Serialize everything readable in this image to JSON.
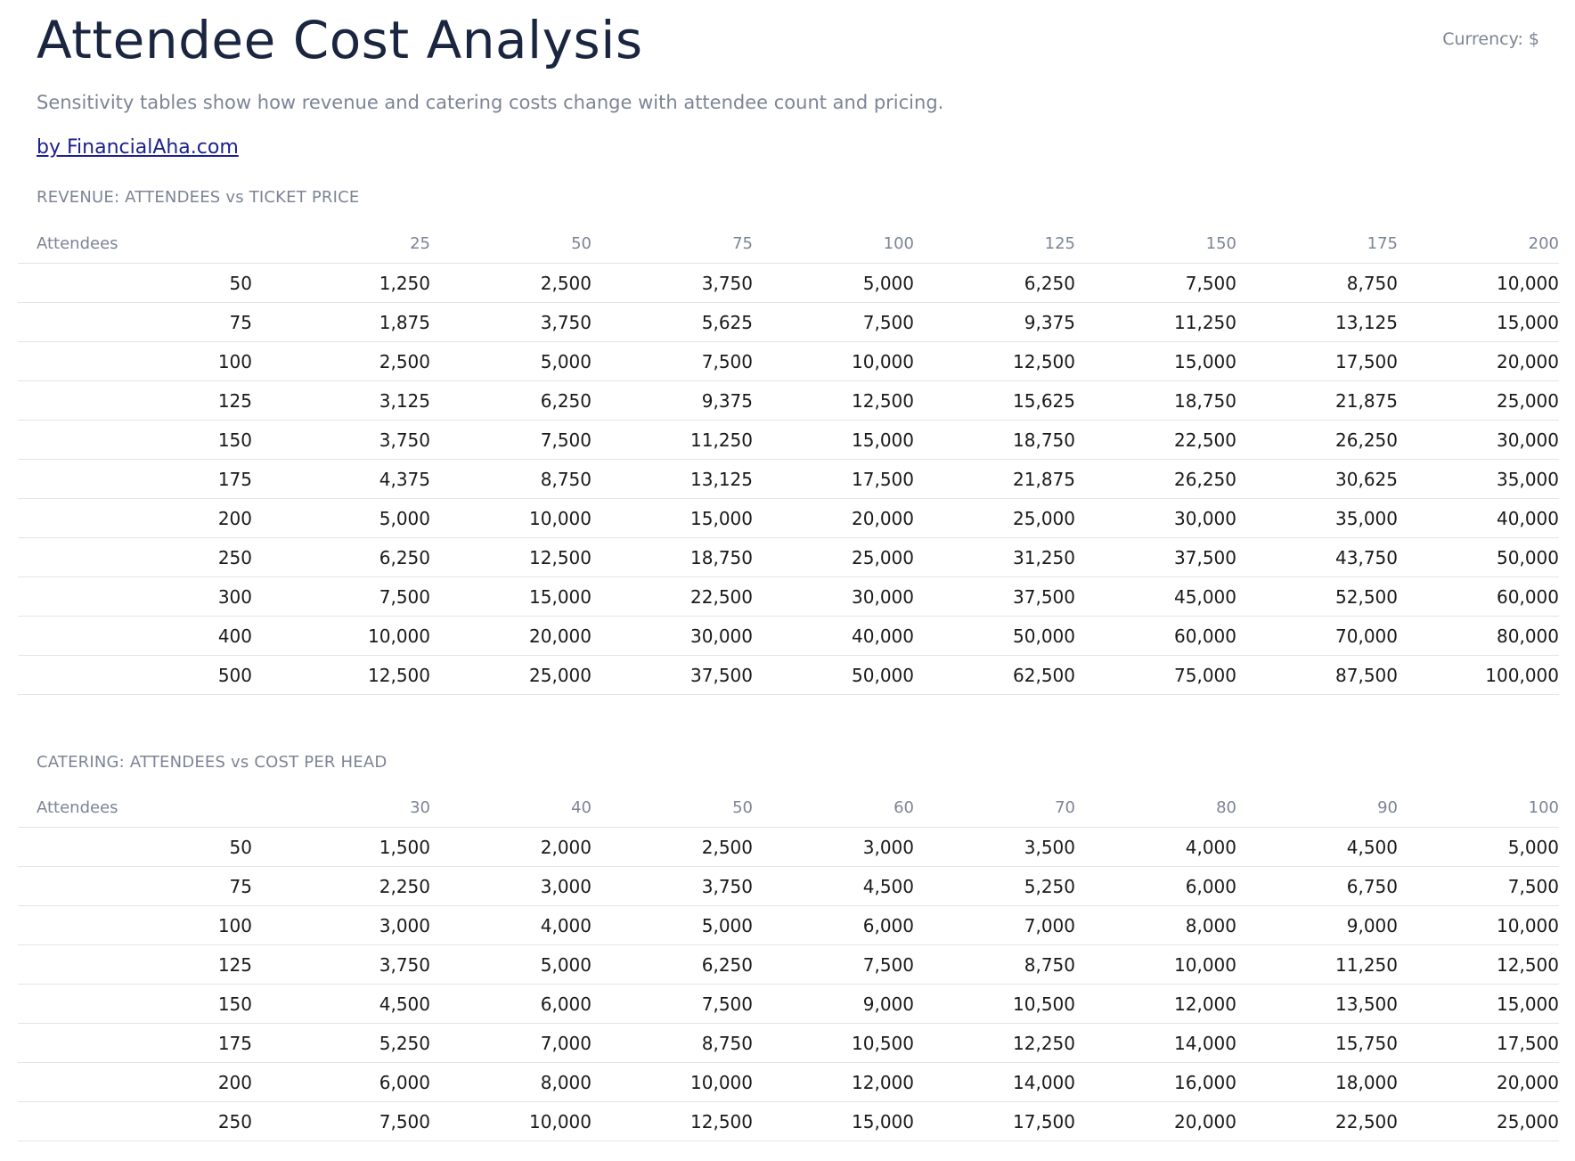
{
  "header": {
    "title": "Attendee Cost Analysis",
    "currency": "Currency: $",
    "subtitle": "Sensitivity tables show how revenue and catering costs change with attendee count and pricing.",
    "byline": "by FinancialAha.com"
  },
  "revenue": {
    "label": "REVENUE: ATTENDEES vs TICKET PRICE",
    "row_header": "Attendees",
    "columns": [
      "25",
      "50",
      "75",
      "100",
      "125",
      "150",
      "175",
      "200"
    ],
    "rows": [
      {
        "attendees": "50",
        "values": [
          "1,250",
          "2,500",
          "3,750",
          "5,000",
          "6,250",
          "7,500",
          "8,750",
          "10,000"
        ]
      },
      {
        "attendees": "75",
        "values": [
          "1,875",
          "3,750",
          "5,625",
          "7,500",
          "9,375",
          "11,250",
          "13,125",
          "15,000"
        ]
      },
      {
        "attendees": "100",
        "values": [
          "2,500",
          "5,000",
          "7,500",
          "10,000",
          "12,500",
          "15,000",
          "17,500",
          "20,000"
        ]
      },
      {
        "attendees": "125",
        "values": [
          "3,125",
          "6,250",
          "9,375",
          "12,500",
          "15,625",
          "18,750",
          "21,875",
          "25,000"
        ]
      },
      {
        "attendees": "150",
        "values": [
          "3,750",
          "7,500",
          "11,250",
          "15,000",
          "18,750",
          "22,500",
          "26,250",
          "30,000"
        ]
      },
      {
        "attendees": "175",
        "values": [
          "4,375",
          "8,750",
          "13,125",
          "17,500",
          "21,875",
          "26,250",
          "30,625",
          "35,000"
        ]
      },
      {
        "attendees": "200",
        "values": [
          "5,000",
          "10,000",
          "15,000",
          "20,000",
          "25,000",
          "30,000",
          "35,000",
          "40,000"
        ]
      },
      {
        "attendees": "250",
        "values": [
          "6,250",
          "12,500",
          "18,750",
          "25,000",
          "31,250",
          "37,500",
          "43,750",
          "50,000"
        ]
      },
      {
        "attendees": "300",
        "values": [
          "7,500",
          "15,000",
          "22,500",
          "30,000",
          "37,500",
          "45,000",
          "52,500",
          "60,000"
        ]
      },
      {
        "attendees": "400",
        "values": [
          "10,000",
          "20,000",
          "30,000",
          "40,000",
          "50,000",
          "60,000",
          "70,000",
          "80,000"
        ]
      },
      {
        "attendees": "500",
        "values": [
          "12,500",
          "25,000",
          "37,500",
          "50,000",
          "62,500",
          "75,000",
          "87,500",
          "100,000"
        ]
      }
    ]
  },
  "catering": {
    "label": "CATERING: ATTENDEES vs COST PER HEAD",
    "row_header": "Attendees",
    "columns": [
      "30",
      "40",
      "50",
      "60",
      "70",
      "80",
      "90",
      "100"
    ],
    "rows": [
      {
        "attendees": "50",
        "values": [
          "1,500",
          "2,000",
          "2,500",
          "3,000",
          "3,500",
          "4,000",
          "4,500",
          "5,000"
        ]
      },
      {
        "attendees": "75",
        "values": [
          "2,250",
          "3,000",
          "3,750",
          "4,500",
          "5,250",
          "6,000",
          "6,750",
          "7,500"
        ]
      },
      {
        "attendees": "100",
        "values": [
          "3,000",
          "4,000",
          "5,000",
          "6,000",
          "7,000",
          "8,000",
          "9,000",
          "10,000"
        ]
      },
      {
        "attendees": "125",
        "values": [
          "3,750",
          "5,000",
          "6,250",
          "7,500",
          "8,750",
          "10,000",
          "11,250",
          "12,500"
        ]
      },
      {
        "attendees": "150",
        "values": [
          "4,500",
          "6,000",
          "7,500",
          "9,000",
          "10,500",
          "12,000",
          "13,500",
          "15,000"
        ]
      },
      {
        "attendees": "175",
        "values": [
          "5,250",
          "7,000",
          "8,750",
          "10,500",
          "12,250",
          "14,000",
          "15,750",
          "17,500"
        ]
      },
      {
        "attendees": "200",
        "values": [
          "6,000",
          "8,000",
          "10,000",
          "12,000",
          "14,000",
          "16,000",
          "18,000",
          "20,000"
        ]
      },
      {
        "attendees": "250",
        "values": [
          "7,500",
          "10,000",
          "12,500",
          "15,000",
          "17,500",
          "20,000",
          "22,500",
          "25,000"
        ]
      }
    ]
  }
}
